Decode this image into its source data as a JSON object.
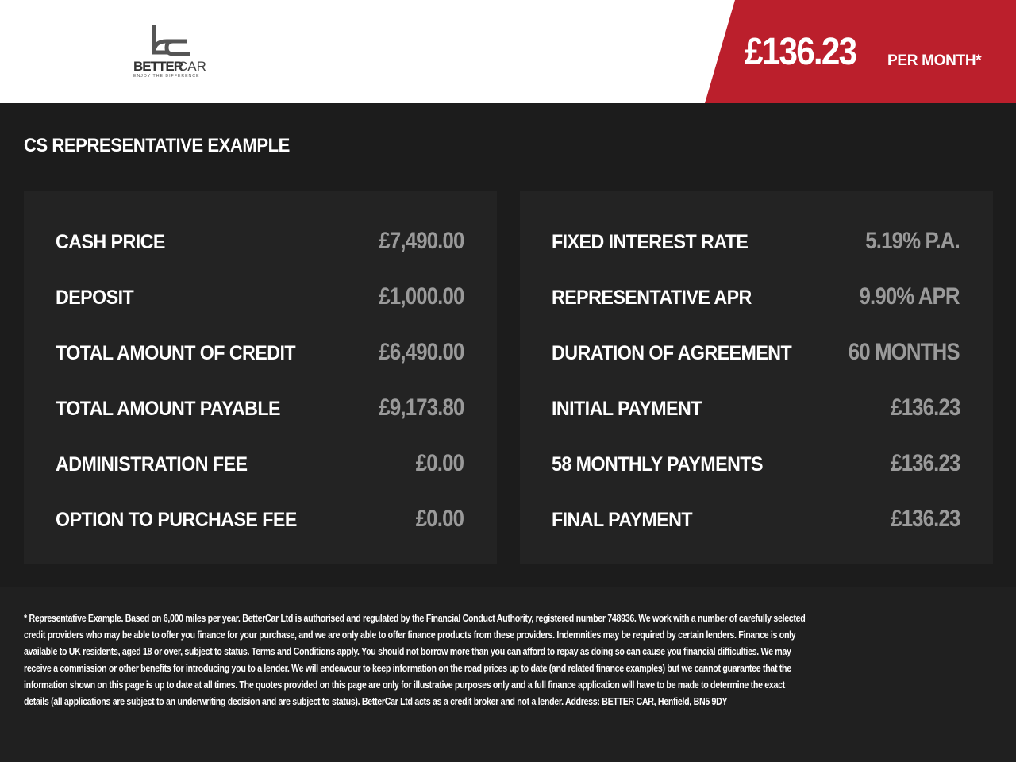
{
  "header": {
    "logo": {
      "text": "BETTERCAR",
      "tagline": "ENJOY THE DIFFERENCE",
      "mark": "bc"
    },
    "price": "£136.23",
    "per_month": "PER MONTH*",
    "accent_color": "#bb1f2c"
  },
  "title": "CS REPRESENTATIVE EXAMPLE",
  "left": [
    {
      "label": "CASH PRICE",
      "value": "£7,490.00"
    },
    {
      "label": "DEPOSIT",
      "value": "£1,000.00"
    },
    {
      "label": "TOTAL AMOUNT OF CREDIT",
      "value": "£6,490.00"
    },
    {
      "label": "TOTAL AMOUNT PAYABLE",
      "value": "£9,173.80"
    },
    {
      "label": "ADMINISTRATION FEE",
      "value": "£0.00"
    },
    {
      "label": "OPTION TO PURCHASE FEE",
      "value": "£0.00"
    }
  ],
  "right": [
    {
      "label": "FIXED INTEREST RATE",
      "value": "5.19% P.A."
    },
    {
      "label": "REPRESENTATIVE APR",
      "value": "9.90% APR"
    },
    {
      "label": "DURATION OF AGREEMENT",
      "value": "60 MONTHS"
    },
    {
      "label": "INITIAL PAYMENT",
      "value": "£136.23"
    },
    {
      "label": "58 MONTHLY PAYMENTS",
      "value": "£136.23"
    },
    {
      "label": "FINAL PAYMENT",
      "value": "£136.23"
    }
  ],
  "footer": [
    "* Representative Example. Based on 6,000 miles per year. BetterCar Ltd is authorised and regulated by the Financial Conduct Authority, registered number 748936. We work with a number of carefully selected",
    "credit providers who may be able to offer you finance for your purchase, and we are only able to offer finance products from these providers. Indemnities may be required by certain lenders. Finance is only",
    "available to UK residents, aged 18 or over, subject to status. Terms and Conditions apply. You should not borrow more than you can afford to repay as doing so can cause you financial difficulties. We may",
    "receive a commission or other benefits for introducing you to a lender. We will endeavour to keep information on the road prices up to date (and related finance examples) but we cannot guarantee that the",
    "information shown on this page is up to date at all times. The quotes provided on this page are only for illustrative purposes only and a full finance application will have to be made to determine the exact",
    "details (all applications are subject to an underwriting decision and are subject to status). BetterCar Ltd acts as a credit broker and not a lender. Address: BETTER CAR, Henfield, BN5 9DY"
  ]
}
